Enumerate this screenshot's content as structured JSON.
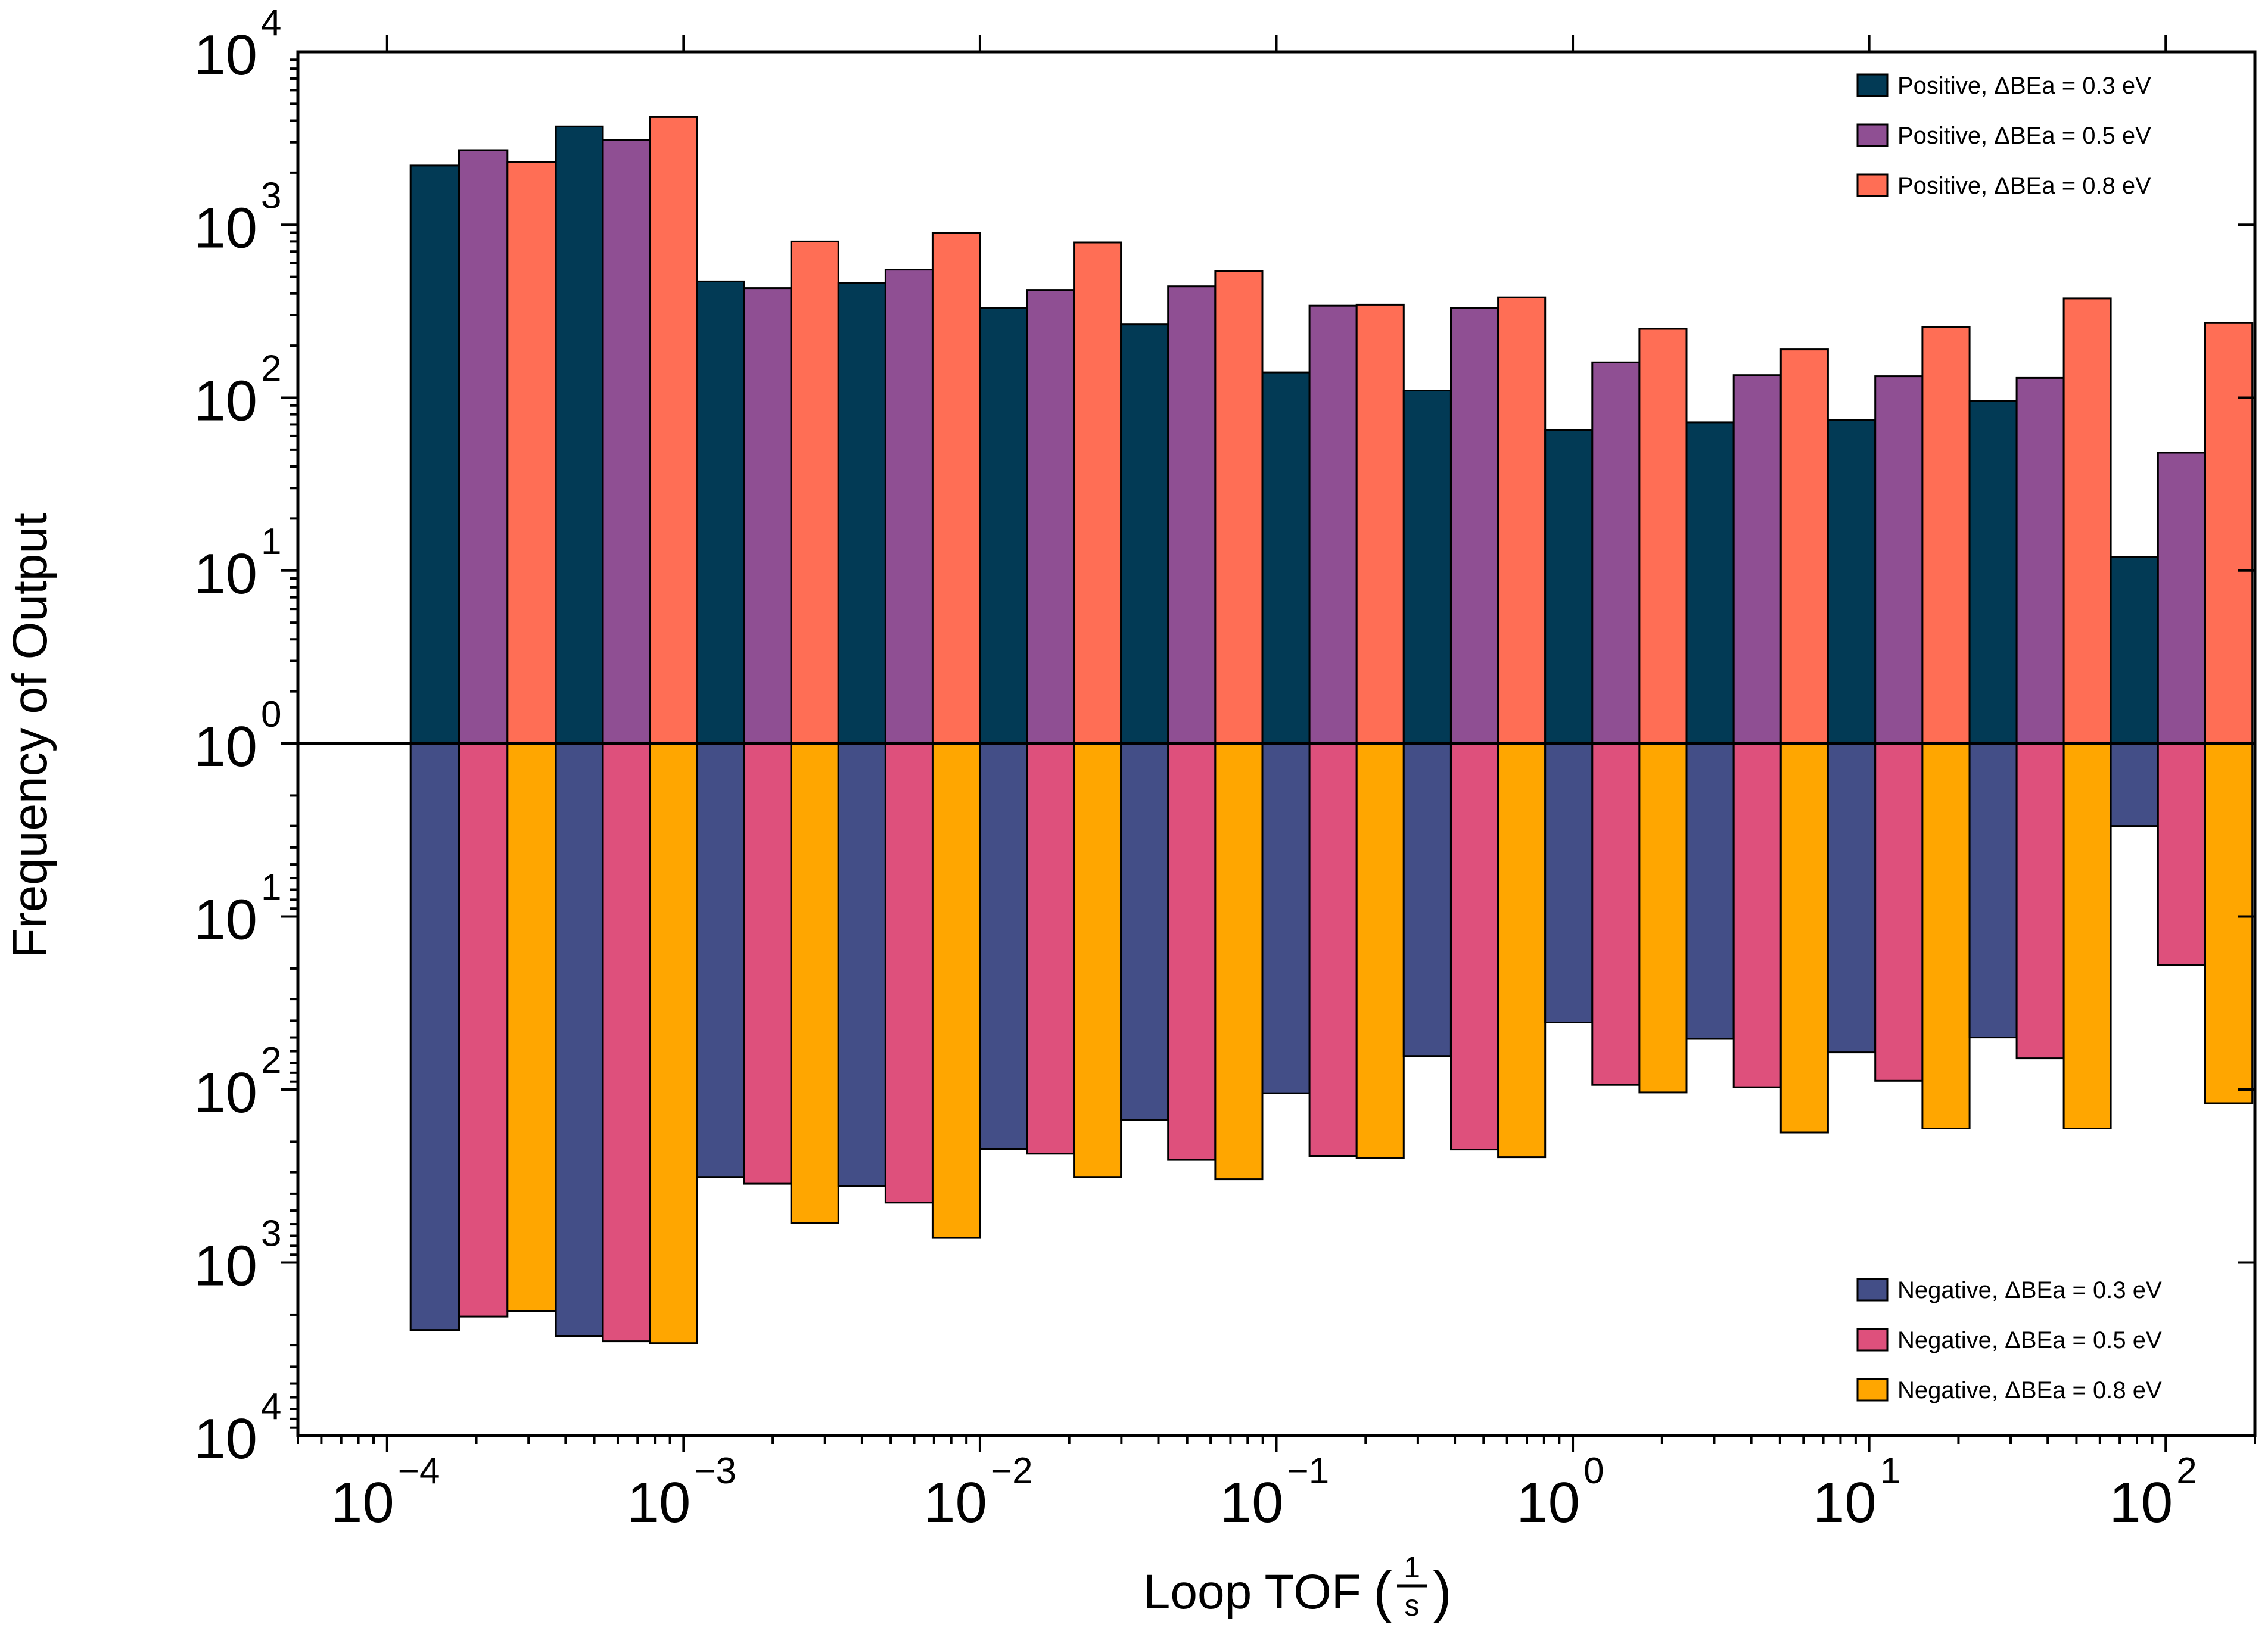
{
  "chart_data": {
    "type": "bar",
    "xlabel": "Loop TOF",
    "xlabel_unit_num": "1",
    "xlabel_unit_den": "s",
    "ylabel": "Frequency of Output",
    "x_scale": "log",
    "y_scale": "log, mirrored about 10^0 (positive counts upward, negative counts downward)",
    "xlim": [
      5e-05,
      200
    ],
    "ylim_positive": [
      1,
      10000
    ],
    "ylim_negative": [
      1,
      10000
    ],
    "x_ticks": [
      {
        "base": "10",
        "exp": "−4",
        "value": 0.0001
      },
      {
        "base": "10",
        "exp": "−3",
        "value": 0.001
      },
      {
        "base": "10",
        "exp": "−2",
        "value": 0.01
      },
      {
        "base": "10",
        "exp": "−1",
        "value": 0.1
      },
      {
        "base": "10",
        "exp": "0",
        "value": 1
      },
      {
        "base": "10",
        "exp": "1",
        "value": 10
      },
      {
        "base": "10",
        "exp": "2",
        "value": 100
      }
    ],
    "y_ticks_positive": [
      {
        "base": "10",
        "exp": "4",
        "value": 10000
      },
      {
        "base": "10",
        "exp": "3",
        "value": 1000
      },
      {
        "base": "10",
        "exp": "2",
        "value": 100
      },
      {
        "base": "10",
        "exp": "1",
        "value": 10
      },
      {
        "base": "10",
        "exp": "0",
        "value": 1
      }
    ],
    "y_ticks_negative": [
      {
        "base": "10",
        "exp": "1",
        "value": 10
      },
      {
        "base": "10",
        "exp": "2",
        "value": 100
      },
      {
        "base": "10",
        "exp": "3",
        "value": 1000
      },
      {
        "base": "10",
        "exp": "4",
        "value": 10000
      }
    ],
    "bin_edges": [
      0.00012,
      0.000371,
      0.00111,
      0.00333,
      0.00998,
      0.0299,
      0.0897,
      0.269,
      0.807,
      2.42,
      7.26,
      21.8,
      65.3,
      196
    ],
    "series": [
      {
        "name": "Positive, ΔBEa = 0.3 eV",
        "color": "#023a55",
        "direction": "up",
        "values": [
          2200,
          3700,
          470,
          460,
          330,
          265,
          140,
          110,
          65,
          72,
          74,
          96,
          12
        ]
      },
      {
        "name": "Positive, ΔBEa = 0.5 eV",
        "color": "#8f4f93",
        "direction": "up",
        "values": [
          2700,
          3100,
          430,
          550,
          420,
          440,
          340,
          330,
          160,
          135,
          133,
          130,
          48
        ]
      },
      {
        "name": "Positive, ΔBEa = 0.8 eV",
        "color": "#ff6e55",
        "direction": "up",
        "values": [
          2300,
          4200,
          800,
          900,
          790,
          540,
          345,
          380,
          250,
          190,
          255,
          375,
          270
        ]
      },
      {
        "name": "Negative, ΔBEa = 0.3 eV",
        "color": "#434e87",
        "direction": "down",
        "values": [
          2450,
          2650,
          320,
          360,
          220,
          150,
          105,
          64,
          41,
          51,
          61,
          50,
          3
        ]
      },
      {
        "name": "Negative, ΔBEa = 0.5 eV",
        "color": "#de507c",
        "direction": "down",
        "values": [
          2050,
          2850,
          350,
          450,
          235,
          255,
          242,
          222,
          94,
          97,
          89,
          66,
          19
        ]
      },
      {
        "name": "Negative, ΔBEa = 0.8 eV",
        "color": "#ffa600",
        "direction": "down",
        "values": [
          1900,
          2920,
          590,
          720,
          320,
          330,
          248,
          246,
          104,
          177,
          168,
          168,
          120
        ]
      }
    ],
    "legend_positive_placement": "top-right",
    "legend_negative_placement": "bottom-right",
    "grid": false
  }
}
